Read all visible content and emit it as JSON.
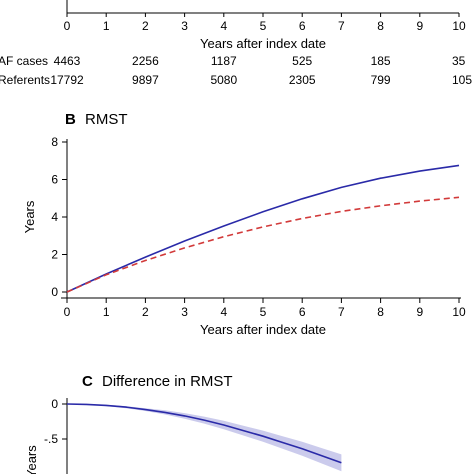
{
  "chart_data": [
    {
      "panel_label": "",
      "title": "",
      "type": "table",
      "xlabel": "Years after index date",
      "x_ticks": [
        "0",
        "1",
        "2",
        "3",
        "4",
        "5",
        "6",
        "7",
        "8",
        "9",
        "10"
      ],
      "risk_table": {
        "x": [
          0,
          2,
          4,
          6,
          8,
          10
        ],
        "rows": [
          {
            "name": "AF cases",
            "values": [
              "4463",
              "2256",
              "1187",
              "525",
              "185",
              "35"
            ]
          },
          {
            "name": "Referents",
            "values": [
              "17792",
              "9897",
              "5080",
              "2305",
              "799",
              "105"
            ]
          }
        ]
      }
    },
    {
      "panel_label": "B",
      "title": "RMST",
      "type": "line",
      "xlabel": "Years after index date",
      "ylabel": "Years",
      "xlim": [
        0,
        10
      ],
      "ylim": [
        0,
        8
      ],
      "x_ticks": [
        "0",
        "1",
        "2",
        "3",
        "4",
        "5",
        "6",
        "7",
        "8",
        "9",
        "10"
      ],
      "y_ticks": [
        "0",
        "2",
        "4",
        "6",
        "8"
      ],
      "grid": false,
      "series": [
        {
          "color": "#2a2aa8",
          "dash": "solid",
          "x": [
            0,
            1,
            2,
            3,
            4,
            5,
            6,
            7,
            8,
            9,
            10
          ],
          "values": [
            0,
            0.96,
            1.86,
            2.72,
            3.52,
            4.28,
            4.97,
            5.58,
            6.07,
            6.45,
            6.75
          ]
        },
        {
          "color": "#d23a3a",
          "dash": "dashed",
          "x": [
            0,
            1,
            2,
            3,
            4,
            5,
            6,
            7,
            8,
            9,
            10
          ],
          "values": [
            0,
            0.92,
            1.68,
            2.35,
            2.95,
            3.47,
            3.92,
            4.3,
            4.6,
            4.85,
            5.05
          ]
        }
      ]
    },
    {
      "panel_label": "C",
      "title": "Difference in RMST",
      "type": "line",
      "ylabel": "Years",
      "xlim": [
        0,
        10
      ],
      "ylim": [
        -1.0,
        0.05
      ],
      "y_ticks": [
        "0",
        "-.5"
      ],
      "grid": false,
      "series": [
        {
          "color": "#2a2aa8",
          "dash": "solid",
          "x": [
            0,
            0.5,
            1,
            1.5,
            2,
            2.5,
            3,
            3.5,
            4,
            4.5,
            5,
            5.5,
            6,
            6.5,
            7
          ],
          "values": [
            0,
            -0.005,
            -0.02,
            -0.045,
            -0.08,
            -0.12,
            -0.17,
            -0.23,
            -0.3,
            -0.38,
            -0.46,
            -0.55,
            -0.64,
            -0.74,
            -0.84
          ],
          "ci_lower": [
            0,
            -0.008,
            -0.03,
            -0.06,
            -0.1,
            -0.15,
            -0.21,
            -0.28,
            -0.36,
            -0.45,
            -0.54,
            -0.64,
            -0.74,
            -0.85,
            -0.96
          ],
          "ci_upper": [
            0,
            -0.002,
            -0.01,
            -0.03,
            -0.06,
            -0.09,
            -0.13,
            -0.18,
            -0.24,
            -0.31,
            -0.38,
            -0.46,
            -0.54,
            -0.63,
            -0.72
          ]
        }
      ]
    }
  ]
}
